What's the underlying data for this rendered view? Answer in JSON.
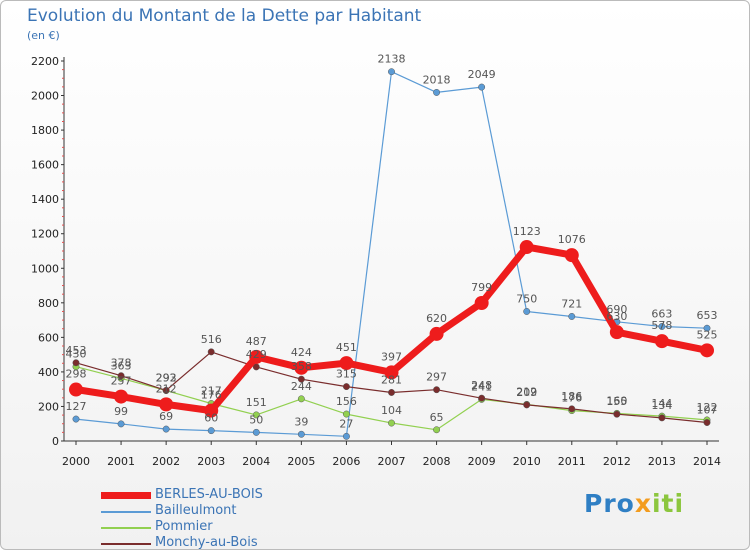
{
  "header": {
    "title": "Evolution du Montant de la Dette par Habitant",
    "unit": "(en €)"
  },
  "logo": {
    "parts": [
      "Pro",
      "x",
      "iti"
    ]
  },
  "chart_data": {
    "type": "line",
    "title": "Evolution du Montant de la Dette par Habitant",
    "ylabel": "(en €)",
    "x": [
      2000,
      2001,
      2002,
      2003,
      2004,
      2005,
      2006,
      2007,
      2008,
      2009,
      2010,
      2011,
      2012,
      2013,
      2014
    ],
    "ylim": [
      0,
      2200
    ],
    "yticks": [
      0,
      200,
      400,
      600,
      800,
      1000,
      1200,
      1400,
      1600,
      1800,
      2000,
      2200
    ],
    "grid": false,
    "legend": "bottom-left",
    "series": [
      {
        "name": "BERLES-AU-BOIS",
        "color": "#ee1c1c",
        "width": 7,
        "marker": 7,
        "values": [
          298,
          257,
          212,
          176,
          487,
          424,
          451,
          397,
          620,
          799,
          1123,
          1076,
          630,
          578,
          525
        ]
      },
      {
        "name": "Bailleulmont",
        "color": "#5b9bd5",
        "width": 1.2,
        "marker": 3.2,
        "values": [
          127,
          99,
          69,
          60,
          50,
          39,
          27,
          2138,
          2018,
          2049,
          750,
          721,
          690,
          663,
          653
        ]
      },
      {
        "name": "Pommier",
        "color": "#92d050",
        "width": 1.2,
        "marker": 3.2,
        "values": [
          430,
          363,
          292,
          217,
          151,
          244,
          156,
          104,
          65,
          241,
          212,
          176,
          160,
          144,
          122
        ]
      },
      {
        "name": "Monchy-au-Bois",
        "color": "#7a2d2d",
        "width": 1.2,
        "marker": 3.2,
        "values": [
          453,
          378,
          293,
          516,
          429,
          358,
          315,
          281,
          297,
          248,
          209,
          186,
          155,
          134,
          107
        ]
      }
    ]
  }
}
